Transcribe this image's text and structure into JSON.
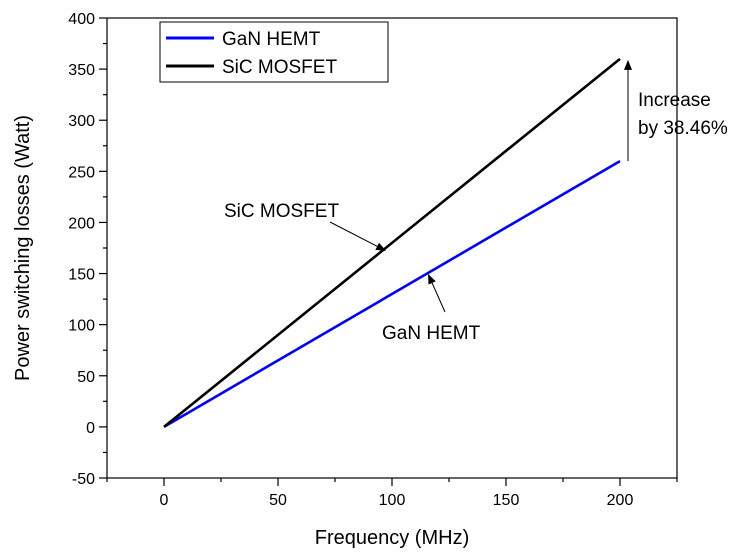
{
  "chart_data": {
    "type": "line",
    "title": "",
    "xlabel": "Frequency (MHz)",
    "ylabel": "Power switching losses (Watt)",
    "xlim": [
      -25,
      225
    ],
    "ylim": [
      -50,
      400
    ],
    "xticks": [
      0,
      50,
      100,
      150,
      200
    ],
    "yticks": [
      -50,
      0,
      50,
      100,
      150,
      200,
      250,
      300,
      350,
      400
    ],
    "grid": false,
    "legend_position": "top-left",
    "series": [
      {
        "name": "GaN HEMT",
        "color": "#0000ff",
        "x": [
          0,
          200
        ],
        "y": [
          0,
          260
        ]
      },
      {
        "name": "SiC MOSFET",
        "color": "#000000",
        "x": [
          0,
          200
        ],
        "y": [
          0,
          360
        ]
      }
    ],
    "annotations": [
      {
        "text": "SiC MOSFET",
        "target_series": "SiC MOSFET",
        "target_x": 97
      },
      {
        "text": "GaN HEMT",
        "target_series": "GaN HEMT",
        "target_x": 116
      },
      {
        "lines": [
          "Increase",
          "by 38.46%"
        ],
        "x": 200,
        "y_from": 260,
        "y_to": 360
      }
    ]
  }
}
